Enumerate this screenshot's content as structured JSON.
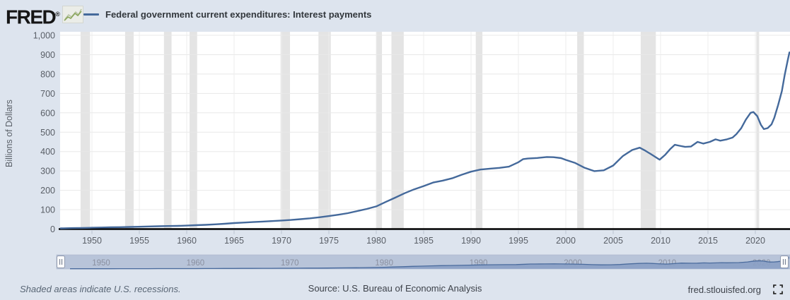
{
  "header": {
    "logo_text": "FRED",
    "registered_mark": "®",
    "legend": {
      "label": "Federal government current expenditures: Interest payments"
    }
  },
  "colors": {
    "page_background": "#dde4ee",
    "plot_background": "#ffffff",
    "line": "#44699b",
    "recession_band": "#e4e4e4",
    "gridline": "#e8e8e8",
    "axis": "#000000",
    "tick_text": "#595e66",
    "slider_track": "#b8c4d9",
    "slider_fill": "#8aa0c4",
    "slider_line": "#4a6b9d",
    "slider_label": "#8a90a0"
  },
  "chart_data": {
    "type": "line",
    "title": "Federal government current expenditures: Interest payments",
    "xlabel": "",
    "ylabel": "Billions of Dollars",
    "ylim": [
      0,
      1000
    ],
    "xlim": [
      1946.6,
      2023.7
    ],
    "grid": true,
    "legend_position": "top-left",
    "y_ticks": [
      [
        0,
        "0"
      ],
      [
        100,
        "100"
      ],
      [
        200,
        "200"
      ],
      [
        300,
        "300"
      ],
      [
        400,
        "400"
      ],
      [
        500,
        "500"
      ],
      [
        600,
        "600"
      ],
      [
        700,
        "700"
      ],
      [
        800,
        "800"
      ],
      [
        900,
        "900"
      ],
      [
        1000,
        "1,000"
      ]
    ],
    "x_ticks": [
      1950,
      1955,
      1960,
      1965,
      1970,
      1975,
      1980,
      1985,
      1990,
      1995,
      2000,
      2005,
      2010,
      2015,
      2020
    ],
    "recessions": [
      [
        1948.8,
        1949.8
      ],
      [
        1953.5,
        1954.4
      ],
      [
        1957.6,
        1958.4
      ],
      [
        1960.3,
        1961.1
      ],
      [
        1969.9,
        1970.9
      ],
      [
        1973.9,
        1975.2
      ],
      [
        1980.0,
        1980.6
      ],
      [
        1981.6,
        1982.9
      ],
      [
        1990.5,
        1991.2
      ],
      [
        2001.2,
        2001.9
      ],
      [
        2007.9,
        2009.5
      ],
      [
        2020.1,
        2020.4
      ]
    ],
    "series": [
      {
        "name": "Federal government current expenditures: Interest payments",
        "units": "Billions of Dollars",
        "points": [
          [
            1946.7,
            3.8
          ],
          [
            1947,
            4
          ],
          [
            1948,
            5
          ],
          [
            1949,
            6
          ],
          [
            1950,
            7
          ],
          [
            1951,
            8
          ],
          [
            1952,
            9
          ],
          [
            1953,
            10
          ],
          [
            1954,
            11
          ],
          [
            1955,
            12
          ],
          [
            1956,
            13.5
          ],
          [
            1957,
            14.5
          ],
          [
            1958,
            15.5
          ],
          [
            1959,
            16.5
          ],
          [
            1960,
            18
          ],
          [
            1961,
            20
          ],
          [
            1962,
            22
          ],
          [
            1963,
            24.5
          ],
          [
            1964,
            27.5
          ],
          [
            1965,
            31
          ],
          [
            1966,
            33.5
          ],
          [
            1967,
            36
          ],
          [
            1968,
            38.5
          ],
          [
            1969,
            41
          ],
          [
            1970,
            44
          ],
          [
            1971,
            47
          ],
          [
            1972,
            51
          ],
          [
            1973,
            55.5
          ],
          [
            1974,
            61
          ],
          [
            1975,
            67
          ],
          [
            1976,
            74
          ],
          [
            1977,
            82
          ],
          [
            1978,
            93
          ],
          [
            1979,
            104
          ],
          [
            1980,
            117
          ],
          [
            1981,
            140
          ],
          [
            1982,
            162
          ],
          [
            1983,
            185
          ],
          [
            1984,
            205
          ],
          [
            1985,
            222
          ],
          [
            1986,
            240
          ],
          [
            1987,
            250
          ],
          [
            1988,
            262
          ],
          [
            1989,
            280
          ],
          [
            1990,
            296
          ],
          [
            1991,
            307
          ],
          [
            1992,
            312
          ],
          [
            1993,
            316
          ],
          [
            1994,
            322
          ],
          [
            1995,
            345
          ],
          [
            1995.5,
            361
          ],
          [
            1996,
            364
          ],
          [
            1997,
            367
          ],
          [
            1998,
            372
          ],
          [
            1998.7,
            371
          ],
          [
            1999.5,
            366
          ],
          [
            2000,
            357
          ],
          [
            2001,
            341
          ],
          [
            2002,
            316
          ],
          [
            2003,
            299
          ],
          [
            2004,
            303
          ],
          [
            2005,
            328
          ],
          [
            2006,
            376
          ],
          [
            2007,
            408
          ],
          [
            2007.8,
            420
          ],
          [
            2008.4,
            404
          ],
          [
            2009,
            386
          ],
          [
            2009.9,
            358
          ],
          [
            2010.5,
            384
          ],
          [
            2011,
            412
          ],
          [
            2011.5,
            435
          ],
          [
            2012,
            430
          ],
          [
            2012.6,
            424
          ],
          [
            2013.2,
            426
          ],
          [
            2013.9,
            450
          ],
          [
            2014.5,
            441
          ],
          [
            2015.2,
            450
          ],
          [
            2015.8,
            463
          ],
          [
            2016.3,
            456
          ],
          [
            2017,
            463
          ],
          [
            2017.6,
            472
          ],
          [
            2018,
            490
          ],
          [
            2018.5,
            520
          ],
          [
            2019,
            565
          ],
          [
            2019.5,
            600
          ],
          [
            2019.8,
            604
          ],
          [
            2020.2,
            583
          ],
          [
            2020.6,
            537
          ],
          [
            2020.9,
            516
          ],
          [
            2021.3,
            521
          ],
          [
            2021.7,
            540
          ],
          [
            2022,
            574
          ],
          [
            2022.4,
            640
          ],
          [
            2022.8,
            712
          ],
          [
            2023.1,
            795
          ],
          [
            2023.4,
            868
          ],
          [
            2023.6,
            912
          ]
        ]
      }
    ]
  },
  "slider": {
    "labels": [
      "1950",
      "1960",
      "1970",
      "1980",
      "1990",
      "2000",
      "2010",
      "2020"
    ],
    "handle_glyph": "||"
  },
  "footer": {
    "note": "Shaded areas indicate U.S. recessions.",
    "source": "Source: U.S. Bureau of Economic Analysis",
    "link": "fred.stlouisfed.org"
  }
}
